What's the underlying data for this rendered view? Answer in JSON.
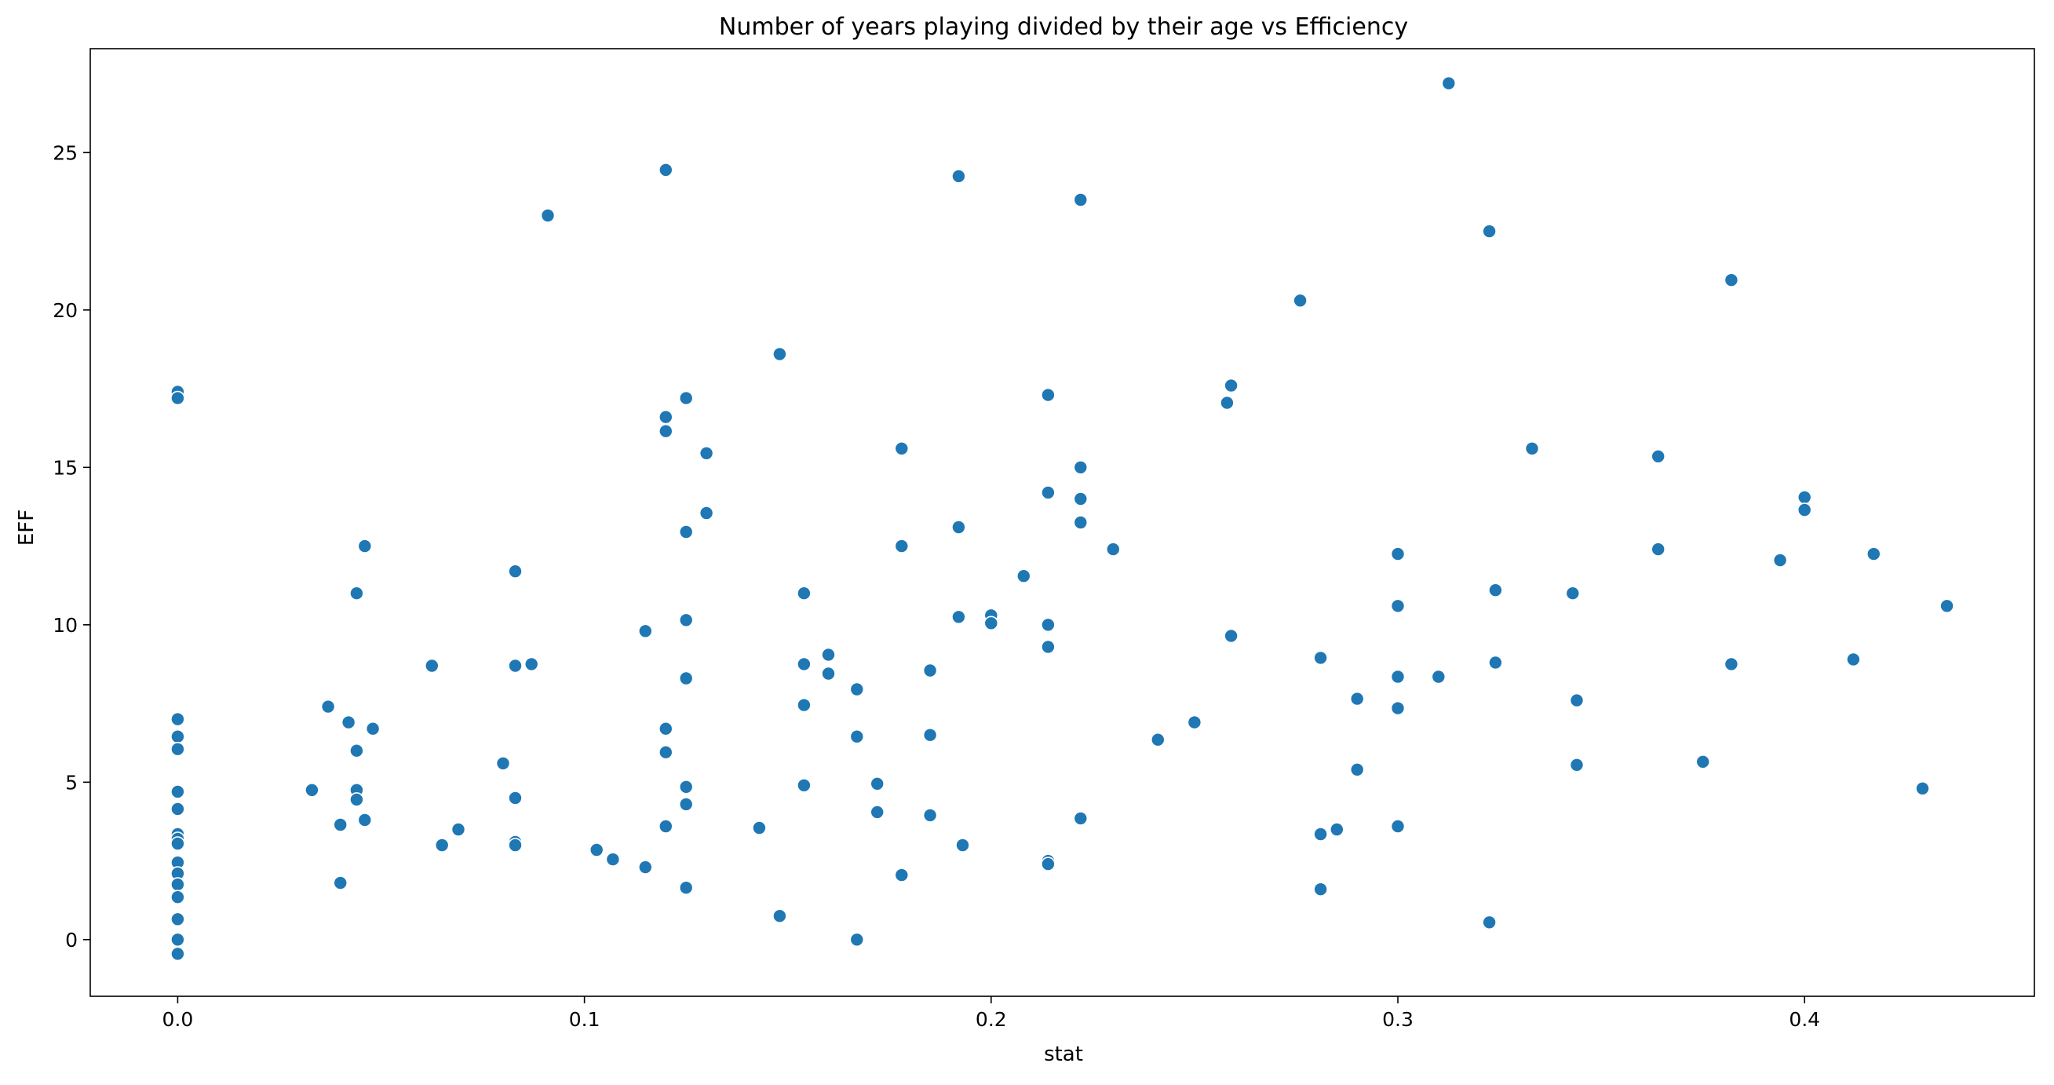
{
  "chart_data": {
    "type": "scatter",
    "title": "Number of years playing divided by their age  vs  Efficiency",
    "xlabel": "stat",
    "ylabel": "EFF",
    "xlim": [
      -0.0215,
      0.4565
    ],
    "ylim": [
      -1.8,
      28.3
    ],
    "xticks": [
      0.0,
      0.1,
      0.2,
      0.3,
      0.4
    ],
    "xtick_labels": [
      "0.0",
      "0.1",
      "0.2",
      "0.3",
      "0.4"
    ],
    "yticks": [
      0,
      5,
      10,
      15,
      20,
      25
    ],
    "ytick_labels": [
      "0",
      "5",
      "10",
      "15",
      "20",
      "25"
    ],
    "grid": false,
    "marker_color": "#1f77b4",
    "marker_edge_color": "#ffffff",
    "points": [
      [
        0.0,
        17.4
      ],
      [
        0.0,
        17.2
      ],
      [
        0.0,
        7.0
      ],
      [
        0.0,
        6.45
      ],
      [
        0.0,
        6.05
      ],
      [
        0.0,
        4.7
      ],
      [
        0.0,
        4.15
      ],
      [
        0.0,
        3.35
      ],
      [
        0.0,
        3.2
      ],
      [
        0.0,
        3.05
      ],
      [
        0.0,
        2.45
      ],
      [
        0.0,
        2.1
      ],
      [
        0.0,
        1.75
      ],
      [
        0.0,
        1.35
      ],
      [
        0.0,
        0.65
      ],
      [
        0.0,
        0.0
      ],
      [
        0.0,
        -0.45
      ],
      [
        0.033,
        4.75
      ],
      [
        0.037,
        7.4
      ],
      [
        0.04,
        3.65
      ],
      [
        0.04,
        1.8
      ],
      [
        0.042,
        6.9
      ],
      [
        0.044,
        11.0
      ],
      [
        0.044,
        6.0
      ],
      [
        0.044,
        4.75
      ],
      [
        0.044,
        4.45
      ],
      [
        0.046,
        12.5
      ],
      [
        0.046,
        3.8
      ],
      [
        0.048,
        6.7
      ],
      [
        0.0625,
        8.7
      ],
      [
        0.065,
        3.0
      ],
      [
        0.069,
        3.5
      ],
      [
        0.08,
        5.6
      ],
      [
        0.083,
        11.7
      ],
      [
        0.083,
        8.7
      ],
      [
        0.083,
        4.5
      ],
      [
        0.083,
        3.1
      ],
      [
        0.083,
        3.0
      ],
      [
        0.087,
        8.75
      ],
      [
        0.091,
        23.0
      ],
      [
        0.103,
        2.85
      ],
      [
        0.107,
        2.55
      ],
      [
        0.115,
        9.8
      ],
      [
        0.115,
        2.3
      ],
      [
        0.12,
        24.45
      ],
      [
        0.12,
        16.6
      ],
      [
        0.12,
        16.15
      ],
      [
        0.12,
        6.7
      ],
      [
        0.12,
        5.95
      ],
      [
        0.12,
        3.6
      ],
      [
        0.125,
        17.2
      ],
      [
        0.125,
        12.95
      ],
      [
        0.125,
        10.15
      ],
      [
        0.125,
        8.3
      ],
      [
        0.125,
        4.85
      ],
      [
        0.125,
        4.3
      ],
      [
        0.125,
        1.65
      ],
      [
        0.13,
        15.45
      ],
      [
        0.13,
        13.55
      ],
      [
        0.143,
        3.55
      ],
      [
        0.148,
        18.6
      ],
      [
        0.148,
        0.75
      ],
      [
        0.154,
        11.0
      ],
      [
        0.154,
        8.75
      ],
      [
        0.154,
        7.45
      ],
      [
        0.154,
        4.9
      ],
      [
        0.16,
        9.05
      ],
      [
        0.16,
        8.45
      ],
      [
        0.167,
        7.95
      ],
      [
        0.167,
        6.45
      ],
      [
        0.167,
        0.0
      ],
      [
        0.172,
        4.95
      ],
      [
        0.172,
        4.05
      ],
      [
        0.178,
        15.6
      ],
      [
        0.178,
        12.5
      ],
      [
        0.178,
        2.05
      ],
      [
        0.185,
        8.55
      ],
      [
        0.185,
        6.5
      ],
      [
        0.185,
        3.95
      ],
      [
        0.192,
        24.25
      ],
      [
        0.192,
        13.1
      ],
      [
        0.192,
        10.25
      ],
      [
        0.193,
        3.0
      ],
      [
        0.2,
        10.3
      ],
      [
        0.2,
        10.05
      ],
      [
        0.208,
        11.55
      ],
      [
        0.214,
        17.3
      ],
      [
        0.214,
        14.2
      ],
      [
        0.214,
        10.0
      ],
      [
        0.214,
        9.3
      ],
      [
        0.214,
        2.5
      ],
      [
        0.214,
        2.4
      ],
      [
        0.222,
        23.5
      ],
      [
        0.222,
        15.0
      ],
      [
        0.222,
        14.0
      ],
      [
        0.222,
        13.25
      ],
      [
        0.222,
        3.85
      ],
      [
        0.23,
        12.4
      ],
      [
        0.241,
        6.35
      ],
      [
        0.25,
        6.9
      ],
      [
        0.258,
        17.05
      ],
      [
        0.259,
        17.6
      ],
      [
        0.259,
        9.65
      ],
      [
        0.276,
        20.3
      ],
      [
        0.281,
        8.95
      ],
      [
        0.281,
        3.35
      ],
      [
        0.281,
        1.6
      ],
      [
        0.285,
        3.5
      ],
      [
        0.29,
        7.65
      ],
      [
        0.29,
        5.4
      ],
      [
        0.3,
        12.25
      ],
      [
        0.3,
        10.6
      ],
      [
        0.3,
        8.35
      ],
      [
        0.3,
        7.35
      ],
      [
        0.3,
        3.6
      ],
      [
        0.31,
        8.35
      ],
      [
        0.3125,
        27.2
      ],
      [
        0.3225,
        22.5
      ],
      [
        0.3225,
        0.55
      ],
      [
        0.324,
        11.1
      ],
      [
        0.324,
        8.8
      ],
      [
        0.333,
        15.6
      ],
      [
        0.343,
        11.0
      ],
      [
        0.344,
        7.6
      ],
      [
        0.344,
        5.55
      ],
      [
        0.364,
        15.35
      ],
      [
        0.364,
        12.4
      ],
      [
        0.375,
        5.65
      ],
      [
        0.382,
        20.95
      ],
      [
        0.382,
        8.75
      ],
      [
        0.394,
        12.05
      ],
      [
        0.4,
        14.05
      ],
      [
        0.4,
        13.65
      ],
      [
        0.412,
        8.9
      ],
      [
        0.417,
        12.25
      ],
      [
        0.429,
        4.8
      ],
      [
        0.435,
        10.6
      ]
    ]
  }
}
